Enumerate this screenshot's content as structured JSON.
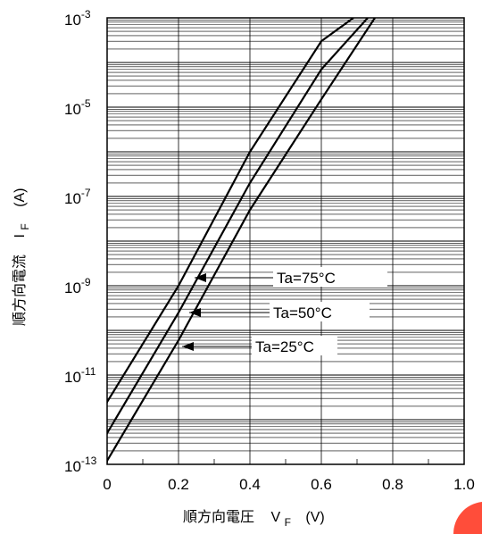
{
  "chart_data": {
    "type": "line",
    "xlabel": {
      "main": "順方向電圧",
      "symbol": "V",
      "sub": "F",
      "unit": "(V)"
    },
    "ylabel": {
      "main": "順方向電流",
      "symbol": "I",
      "sub": "F",
      "unit": "(A)"
    },
    "xlim": [
      0,
      1.0
    ],
    "ylim": [
      1e-13,
      0.001
    ],
    "yscale": "log",
    "grid": true,
    "x_ticks": [
      "0",
      "0.2",
      "0.4",
      "0.6",
      "0.8",
      "1.0"
    ],
    "y_ticks": [
      {
        "base": "10",
        "exp": "-3"
      },
      {
        "base": "10",
        "exp": "-5"
      },
      {
        "base": "10",
        "exp": "-7"
      },
      {
        "base": "10",
        "exp": "-9"
      },
      {
        "base": "10",
        "exp": "-11"
      },
      {
        "base": "10",
        "exp": "-13"
      }
    ],
    "legend_placement": "inline-right",
    "series": [
      {
        "name": "Ta=75°C",
        "x": [
          -0.02,
          0.0,
          0.2,
          0.4,
          0.6,
          0.69
        ],
        "y": [
          1e-12,
          2.5e-12,
          1e-09,
          1e-06,
          0.0003,
          0.001
        ]
      },
      {
        "name": "Ta=50°C",
        "x": [
          -0.02,
          0.0,
          0.2,
          0.4,
          0.6,
          0.73
        ],
        "y": [
          2e-13,
          5e-13,
          2.5e-10,
          2e-07,
          7e-05,
          0.001
        ]
      },
      {
        "name": "Ta=25°C",
        "x": [
          -0.02,
          0.0,
          0.2,
          0.4,
          0.6,
          0.75
        ],
        "y": [
          1e-14,
          1.2e-13,
          6e-11,
          5e-08,
          1.5e-05,
          0.001
        ]
      }
    ]
  }
}
